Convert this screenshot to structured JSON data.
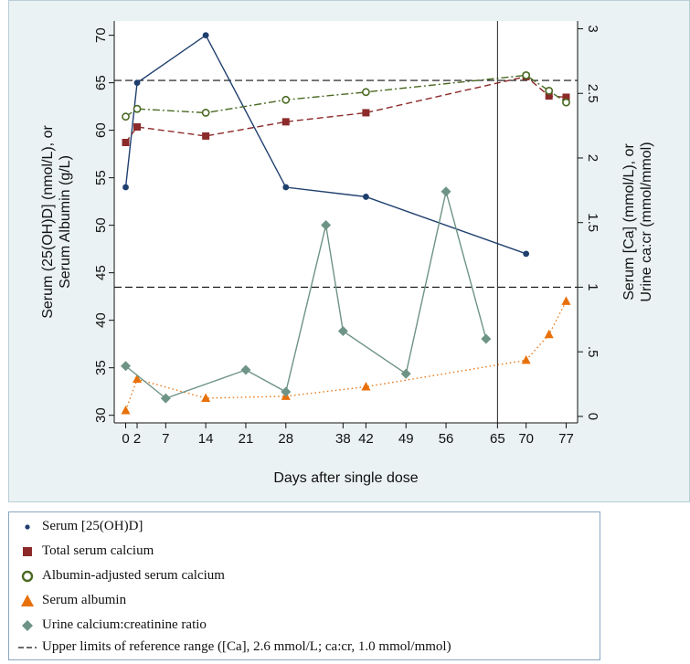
{
  "chart_data": {
    "type": "line",
    "xlabel": "Days after single dose",
    "ylabel_left": [
      "Serum (25(OH)D] (nmol/L), or",
      "Serum Albumin (g/L)"
    ],
    "ylabel_right": [
      "Serum [Ca] (mmol/L), or",
      "Urine ca:cr (mmol/mmol)"
    ],
    "x_ticks": [
      "0",
      "2",
      "7",
      "14",
      "21",
      "28",
      "38",
      "42",
      "49",
      "56",
      "65",
      "70",
      "77"
    ],
    "x_tick_values": [
      0,
      2,
      7,
      14,
      21,
      28,
      38,
      42,
      49,
      56,
      65,
      70,
      77
    ],
    "xlim": [
      -2,
      79
    ],
    "y_left_ticks": [
      "30",
      "35",
      "40",
      "45",
      "50",
      "55",
      "60",
      "65",
      "70"
    ],
    "ylim_left": [
      29.2,
      71.5
    ],
    "y_right_ticks": [
      "0",
      ".5",
      "1",
      "1.5",
      "2",
      "2.5",
      "3"
    ],
    "ylim_right": [
      -0.05,
      3.06
    ],
    "reference_lines_right_axis": [
      2.6,
      1.0
    ],
    "vertical_line_x": 65,
    "series": [
      {
        "name": "Serum [25(OH)D]",
        "axis": "left",
        "color": "#1f3f6e",
        "style": "solid",
        "marker": "dot",
        "x": [
          0,
          2,
          14,
          28,
          42,
          70
        ],
        "values": [
          54,
          65,
          70,
          54,
          53,
          47
        ]
      },
      {
        "name": "Total serum calcium",
        "axis": "right",
        "color": "#8c2a2a",
        "style": "dashed",
        "marker": "square",
        "x": [
          0,
          2,
          14,
          28,
          42,
          70,
          74,
          77
        ],
        "values": [
          2.12,
          2.24,
          2.17,
          2.28,
          2.35,
          2.63,
          2.48,
          2.47
        ]
      },
      {
        "name": "Albumin-adjusted serum calcium",
        "axis": "right",
        "color": "#4a6a22",
        "style": "dashdot",
        "marker": "circle-open",
        "x": [
          0,
          2,
          14,
          28,
          42,
          70,
          74,
          77
        ],
        "values": [
          2.32,
          2.38,
          2.35,
          2.45,
          2.51,
          2.64,
          2.52,
          2.43
        ]
      },
      {
        "name": "Serum albumin",
        "axis": "left",
        "color": "#e8700a",
        "style": "dotted",
        "marker": "triangle",
        "x": [
          0,
          2,
          14,
          28,
          42,
          70,
          74,
          77
        ],
        "values": [
          30.5,
          33.8,
          31.8,
          32,
          33,
          35.8,
          38.5,
          42
        ]
      },
      {
        "name": "Urine calcium:creatinine ratio",
        "axis": "right",
        "color": "#6e9486",
        "style": "solid",
        "marker": "diamond",
        "x": [
          0,
          7,
          21,
          28,
          35,
          38,
          49,
          56,
          63
        ],
        "values": [
          0.39,
          0.14,
          0.36,
          0.19,
          1.48,
          0.66,
          0.33,
          1.74,
          0.6
        ]
      }
    ]
  },
  "legend": {
    "items": [
      {
        "label": "Serum [25(OH)D]",
        "symbol": "dot",
        "color": "#1f3f6e"
      },
      {
        "label": "Total serum calcium",
        "symbol": "square",
        "color": "#8c2a2a"
      },
      {
        "label": "Albumin-adjusted serum calcium",
        "symbol": "circle-open",
        "color": "#4a6a22"
      },
      {
        "label": "Serum albumin",
        "symbol": "triangle",
        "color": "#e8700a"
      },
      {
        "label": "Urine calcium:creatinine ratio",
        "symbol": "diamond",
        "color": "#6e9486"
      },
      {
        "label": "Upper limits of reference range ([Ca], 2.6 mmol/L; ca:cr, 1.0 mmol/mmol)",
        "symbol": "dash",
        "color": "#111111"
      }
    ]
  }
}
